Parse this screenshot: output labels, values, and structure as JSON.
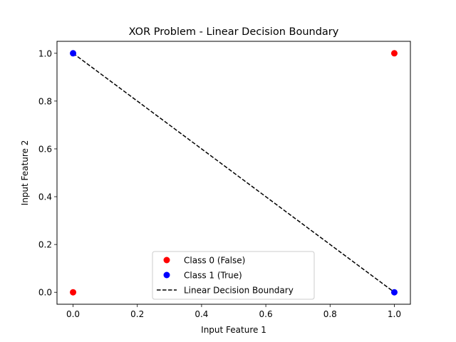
{
  "chart_data": {
    "type": "scatter",
    "title": "XOR Problem - Linear Decision Boundary",
    "xlabel": "Input Feature 1",
    "ylabel": "Input Feature 2",
    "xlim": [
      -0.05,
      1.05
    ],
    "ylim": [
      -0.05,
      1.05
    ],
    "xticks": [
      0.0,
      0.2,
      0.4,
      0.6,
      0.8,
      1.0
    ],
    "yticks": [
      0.0,
      0.2,
      0.4,
      0.6,
      0.8,
      1.0
    ],
    "x_tick_labels": [
      "0.0",
      "0.2",
      "0.4",
      "0.6",
      "0.8",
      "1.0"
    ],
    "y_tick_labels": [
      "0.0",
      "0.2",
      "0.4",
      "0.6",
      "0.8",
      "1.0"
    ],
    "grid": false,
    "legend_position": "lower-center",
    "series": [
      {
        "name": "Class 0 (False)",
        "kind": "scatter",
        "color": "#ff0000",
        "points": [
          [
            0,
            0
          ],
          [
            1,
            1
          ]
        ]
      },
      {
        "name": "Class 1 (True)",
        "kind": "scatter",
        "color": "#0000ff",
        "points": [
          [
            0,
            1
          ],
          [
            1,
            0
          ]
        ]
      },
      {
        "name": "Linear Decision Boundary",
        "kind": "line",
        "style": "dashed",
        "color": "#000000",
        "points": [
          [
            0,
            1
          ],
          [
            1,
            0
          ]
        ]
      }
    ]
  }
}
